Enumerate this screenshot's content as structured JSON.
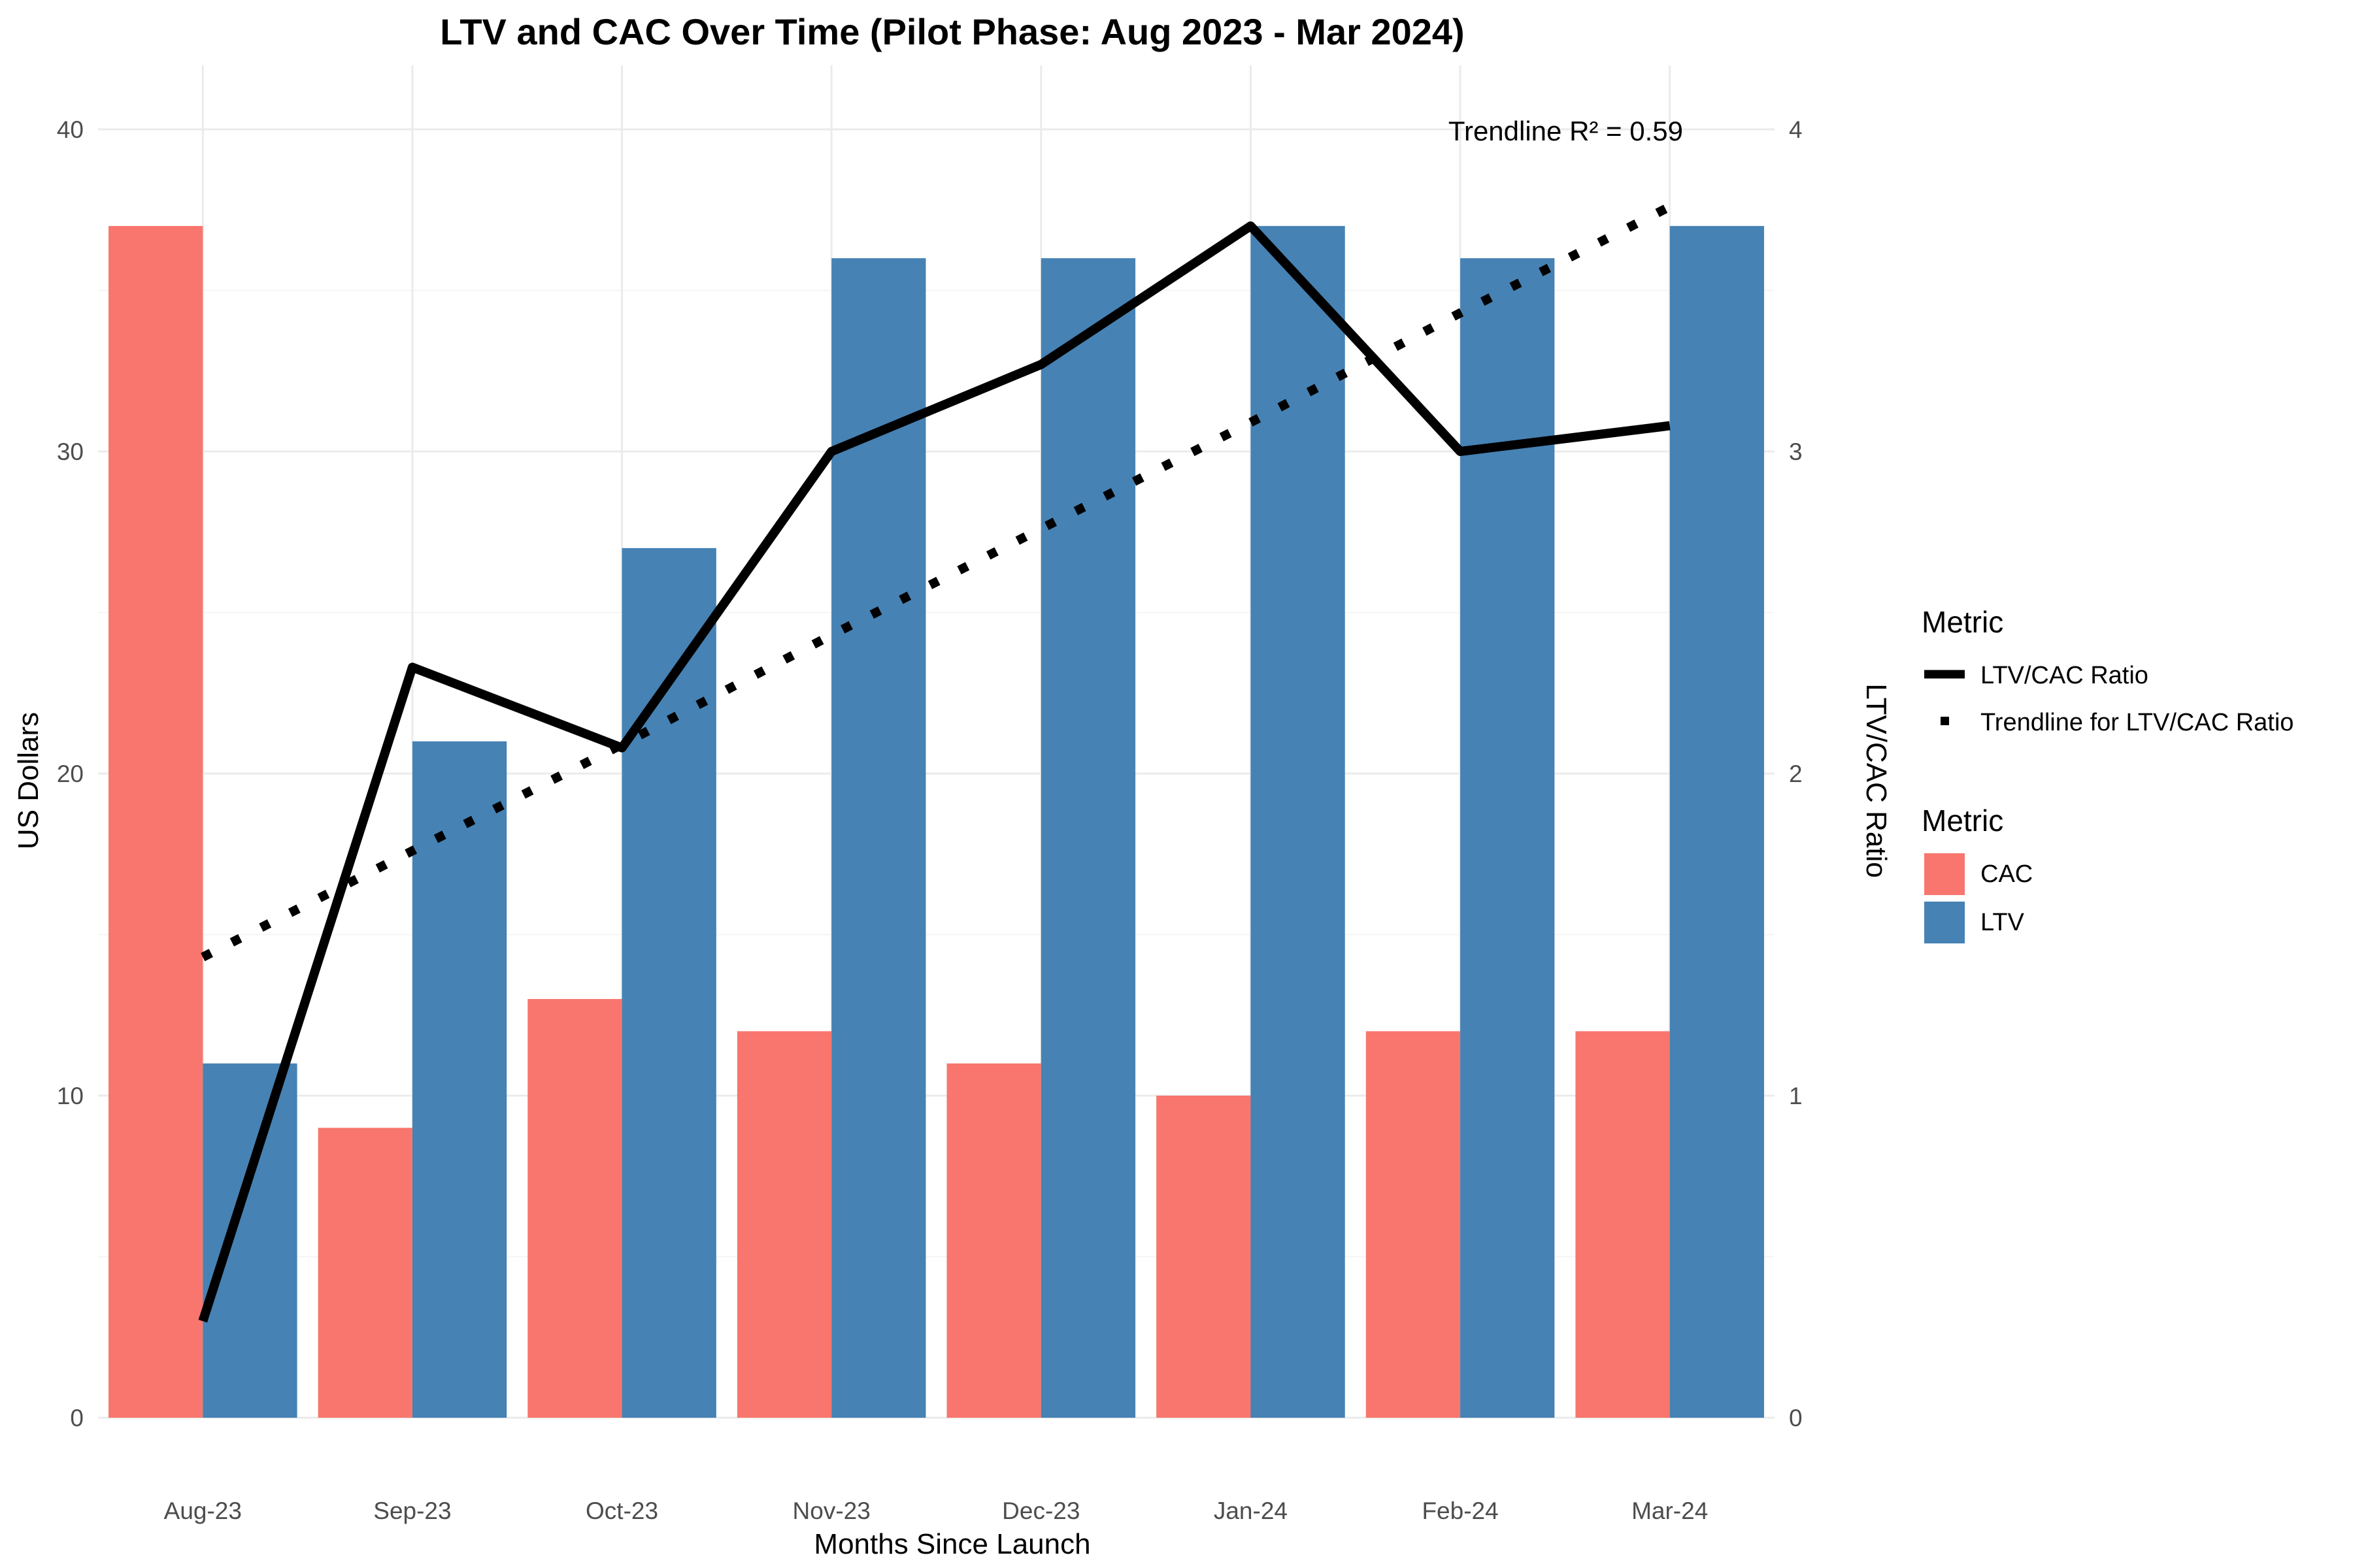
{
  "chart_data": {
    "type": "bar",
    "title": "LTV and CAC Over Time (Pilot Phase: Aug 2023 - Mar 2024)",
    "xlabel": "Months Since Launch",
    "ylabel": "US Dollars",
    "y2label": "LTV/CAC Ratio",
    "categories": [
      "Aug-23",
      "Sep-23",
      "Oct-23",
      "Nov-23",
      "Dec-23",
      "Jan-24",
      "Feb-24",
      "Mar-24"
    ],
    "ylim": [
      0,
      40
    ],
    "y2lim": [
      0,
      4
    ],
    "yticks": [
      0,
      10,
      20,
      30,
      40
    ],
    "y2ticks": [
      0,
      1,
      2,
      3,
      4
    ],
    "grid": true,
    "series": [
      {
        "name": "CAC",
        "kind": "bar",
        "color": "#F8766D",
        "values": [
          37,
          9,
          13,
          12,
          11,
          10,
          12,
          12
        ]
      },
      {
        "name": "LTV",
        "kind": "bar",
        "color": "#4682B4",
        "values": [
          11,
          21,
          27,
          36,
          36,
          37,
          36,
          37
        ]
      },
      {
        "name": "LTV/CAC Ratio",
        "kind": "line",
        "axis": "right",
        "color": "#000000",
        "values": [
          0.3,
          2.33,
          2.08,
          3.0,
          3.27,
          3.7,
          3.0,
          3.08
        ]
      },
      {
        "name": "Trendline for LTV/CAC Ratio",
        "kind": "dotted-line",
        "axis": "right",
        "color": "#000000",
        "values": [
          1.43,
          1.76,
          2.09,
          2.43,
          2.76,
          3.09,
          3.43,
          3.76
        ]
      }
    ],
    "annotation": "Trendline R² = 0.59",
    "legends": [
      {
        "title": "Metric",
        "entries": [
          "LTV/CAC Ratio",
          "Trendline for LTV/CAC Ratio"
        ]
      },
      {
        "title": "Metric",
        "entries": [
          "CAC",
          "LTV"
        ]
      }
    ],
    "legend_position": "right"
  }
}
